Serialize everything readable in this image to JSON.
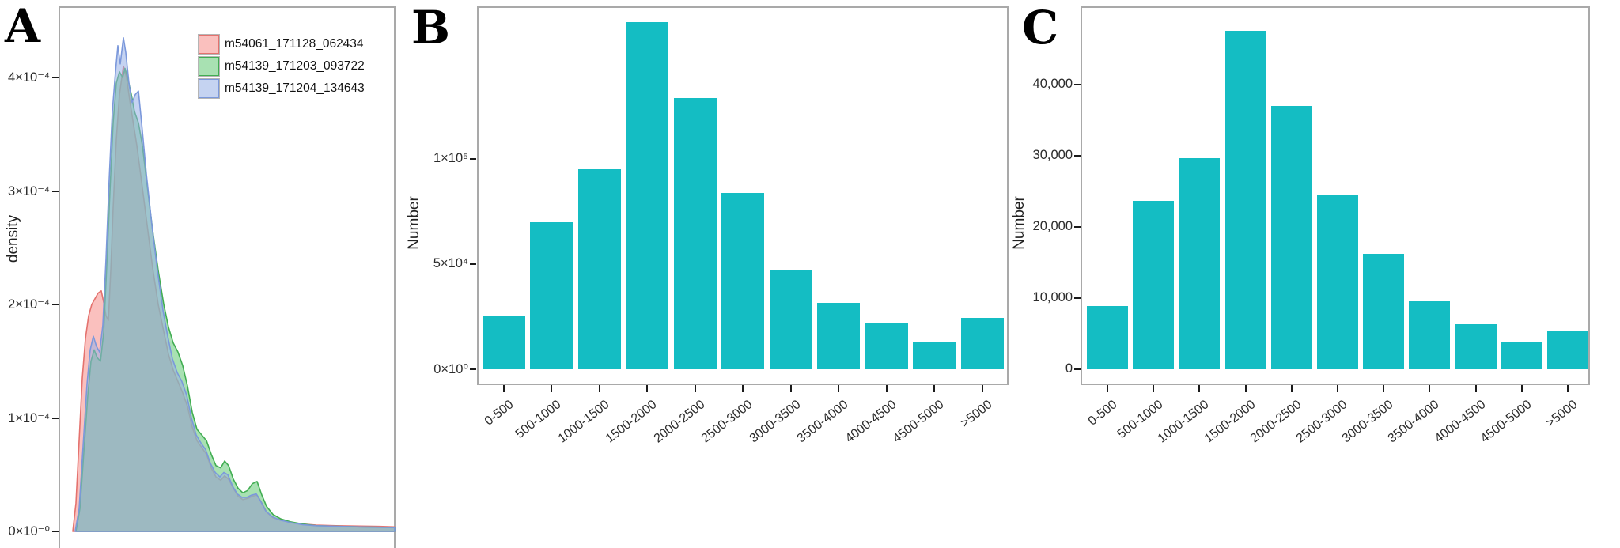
{
  "panels": {
    "A": {
      "label": "A",
      "y_axis_title": "density"
    },
    "B": {
      "label": "B",
      "y_axis_title": "Number"
    },
    "C": {
      "label": "C",
      "y_axis_title": "Number"
    }
  },
  "chart_data": [
    {
      "panel": "A",
      "type": "area",
      "title": "",
      "xlabel": "",
      "ylabel": "density",
      "grid": false,
      "legend_position": "top-left-inside",
      "ylim_e4": [
        0,
        4.63
      ],
      "y_ticks": [
        {
          "label": "0×10⁻⁰",
          "value": 0
        },
        {
          "label": "1×10⁻⁴",
          "value": 1
        },
        {
          "label": "2×10⁻⁴",
          "value": 2
        },
        {
          "label": "3×10⁻⁴",
          "value": 3
        },
        {
          "label": "4×10⁻⁴",
          "value": 4
        }
      ],
      "series": [
        {
          "name": "m54061_171128_062434",
          "line_color": "#e4726e",
          "fill_color": "rgba(246,140,136,0.55)",
          "points": [
            [
              92,
              0
            ],
            [
              96,
              0.25
            ],
            [
              100,
              0.8
            ],
            [
              104,
              1.35
            ],
            [
              108,
              1.7
            ],
            [
              112,
              1.9
            ],
            [
              116,
              2.0
            ],
            [
              120,
              2.05
            ],
            [
              124,
              2.1
            ],
            [
              128,
              2.12
            ],
            [
              131,
              2.02
            ],
            [
              134,
              1.9
            ],
            [
              137,
              1.86
            ],
            [
              140,
              2.3
            ],
            [
              143,
              2.85
            ],
            [
              147,
              3.45
            ],
            [
              151,
              3.85
            ],
            [
              156,
              4.1
            ],
            [
              160,
              4.0
            ],
            [
              164,
              3.8
            ],
            [
              168,
              3.62
            ],
            [
              173,
              3.4
            ],
            [
              179,
              3.08
            ],
            [
              186,
              2.7
            ],
            [
              193,
              2.32
            ],
            [
              200,
              2.0
            ],
            [
              207,
              1.76
            ],
            [
              213,
              1.56
            ],
            [
              219,
              1.42
            ],
            [
              225,
              1.32
            ],
            [
              231,
              1.22
            ],
            [
              237,
              1.1
            ],
            [
              243,
              0.92
            ],
            [
              249,
              0.8
            ],
            [
              255,
              0.74
            ],
            [
              261,
              0.68
            ],
            [
              267,
              0.56
            ],
            [
              273,
              0.48
            ],
            [
              279,
              0.45
            ],
            [
              284,
              0.49
            ],
            [
              289,
              0.46
            ],
            [
              295,
              0.38
            ],
            [
              301,
              0.31
            ],
            [
              307,
              0.28
            ],
            [
              313,
              0.29
            ],
            [
              319,
              0.31
            ],
            [
              325,
              0.32
            ],
            [
              331,
              0.25
            ],
            [
              337,
              0.17
            ],
            [
              345,
              0.12
            ],
            [
              355,
              0.1
            ],
            [
              367,
              0.08
            ],
            [
              383,
              0.065
            ],
            [
              400,
              0.055
            ],
            [
              425,
              0.05
            ],
            [
              455,
              0.047
            ],
            [
              480,
              0.044
            ],
            [
              499,
              0.04
            ]
          ]
        },
        {
          "name": "m54139_171203_093722",
          "line_color": "#41ad52",
          "fill_color": "rgba(97,200,115,0.55)",
          "points": [
            [
              96,
              0
            ],
            [
              101,
              0.2
            ],
            [
              106,
              0.7
            ],
            [
              111,
              1.2
            ],
            [
              115,
              1.5
            ],
            [
              119,
              1.6
            ],
            [
              123,
              1.53
            ],
            [
              127,
              1.5
            ],
            [
              131,
              1.75
            ],
            [
              135,
              2.35
            ],
            [
              139,
              3.0
            ],
            [
              143,
              3.6
            ],
            [
              147,
              3.95
            ],
            [
              151,
              4.05
            ],
            [
              155,
              4.0
            ],
            [
              158,
              4.08
            ],
            [
              162,
              3.98
            ],
            [
              166,
              3.85
            ],
            [
              170,
              3.7
            ],
            [
              175,
              3.6
            ],
            [
              180,
              3.4
            ],
            [
              186,
              3.05
            ],
            [
              193,
              2.65
            ],
            [
              200,
              2.3
            ],
            [
              207,
              2.0
            ],
            [
              213,
              1.8
            ],
            [
              219,
              1.66
            ],
            [
              225,
              1.58
            ],
            [
              231,
              1.46
            ],
            [
              237,
              1.28
            ],
            [
              243,
              1.05
            ],
            [
              249,
              0.9
            ],
            [
              255,
              0.85
            ],
            [
              261,
              0.8
            ],
            [
              267,
              0.68
            ],
            [
              273,
              0.58
            ],
            [
              279,
              0.56
            ],
            [
              284,
              0.62
            ],
            [
              289,
              0.58
            ],
            [
              295,
              0.46
            ],
            [
              301,
              0.38
            ],
            [
              307,
              0.34
            ],
            [
              313,
              0.36
            ],
            [
              319,
              0.42
            ],
            [
              325,
              0.44
            ],
            [
              331,
              0.32
            ],
            [
              337,
              0.22
            ],
            [
              345,
              0.15
            ],
            [
              355,
              0.11
            ],
            [
              367,
              0.085
            ],
            [
              383,
              0.065
            ],
            [
              400,
              0.05
            ],
            [
              425,
              0.045
            ],
            [
              455,
              0.04
            ],
            [
              480,
              0.036
            ],
            [
              499,
              0.034
            ]
          ]
        },
        {
          "name": "m54139_171204_134643",
          "line_color": "#7b98db",
          "fill_color": "rgba(150,175,230,0.55)",
          "points": [
            [
              95,
              0
            ],
            [
              100,
              0.2
            ],
            [
              105,
              0.75
            ],
            [
              110,
              1.3
            ],
            [
              114,
              1.6
            ],
            [
              118,
              1.72
            ],
            [
              122,
              1.63
            ],
            [
              126,
              1.58
            ],
            [
              130,
              1.82
            ],
            [
              134,
              2.4
            ],
            [
              138,
              3.1
            ],
            [
              142,
              3.7
            ],
            [
              146,
              4.05
            ],
            [
              149,
              4.28
            ],
            [
              152,
              4.12
            ],
            [
              156,
              4.35
            ],
            [
              159,
              4.22
            ],
            [
              163,
              3.95
            ],
            [
              167,
              3.78
            ],
            [
              171,
              3.85
            ],
            [
              175,
              3.88
            ],
            [
              179,
              3.6
            ],
            [
              185,
              3.15
            ],
            [
              192,
              2.7
            ],
            [
              199,
              2.3
            ],
            [
              206,
              1.95
            ],
            [
              212,
              1.72
            ],
            [
              218,
              1.52
            ],
            [
              224,
              1.4
            ],
            [
              230,
              1.32
            ],
            [
              236,
              1.2
            ],
            [
              242,
              1.0
            ],
            [
              248,
              0.85
            ],
            [
              254,
              0.78
            ],
            [
              260,
              0.72
            ],
            [
              266,
              0.6
            ],
            [
              272,
              0.52
            ],
            [
              278,
              0.48
            ],
            [
              283,
              0.52
            ],
            [
              288,
              0.5
            ],
            [
              294,
              0.4
            ],
            [
              300,
              0.33
            ],
            [
              306,
              0.3
            ],
            [
              312,
              0.3
            ],
            [
              318,
              0.32
            ],
            [
              324,
              0.33
            ],
            [
              330,
              0.26
            ],
            [
              336,
              0.18
            ],
            [
              344,
              0.13
            ],
            [
              354,
              0.1
            ],
            [
              366,
              0.08
            ],
            [
              382,
              0.06
            ],
            [
              400,
              0.05
            ],
            [
              425,
              0.045
            ],
            [
              455,
              0.04
            ],
            [
              480,
              0.037
            ],
            [
              499,
              0.034
            ]
          ]
        }
      ]
    },
    {
      "panel": "B",
      "type": "bar",
      "title": "",
      "xlabel": "",
      "ylabel": "Number",
      "grid": false,
      "bar_color": "#14bdc3",
      "ylim": [
        0,
        172000
      ],
      "categories": [
        "0-500",
        "500-1000",
        "1000-1500",
        "1500-2000",
        "2000-2500",
        "2500-3000",
        "3000-3500",
        "3500-4000",
        "4000-4500",
        "4500-5000",
        ">5000"
      ],
      "values": [
        25500,
        70000,
        95000,
        165000,
        129000,
        84000,
        47500,
        31500,
        22000,
        13000,
        24500
      ],
      "y_ticks": [
        {
          "label": "0×10⁰",
          "value": 0
        },
        {
          "label": "5×10⁴",
          "value": 50000
        },
        {
          "label": "1×10⁵",
          "value": 100000
        }
      ]
    },
    {
      "panel": "C",
      "type": "bar",
      "title": "",
      "xlabel": "",
      "ylabel": "Number",
      "grid": false,
      "bar_color": "#14bdc3",
      "ylim": [
        0,
        51000
      ],
      "categories": [
        "0-500",
        "500-1000",
        "1000-1500",
        "1500-2000",
        "2000-2500",
        "2500-3000",
        "3000-3500",
        "3500-4000",
        "4000-4500",
        "4500-5000",
        ">5000"
      ],
      "values": [
        8900,
        23600,
        29600,
        47500,
        37000,
        24400,
        16200,
        9600,
        6300,
        3800,
        5300
      ],
      "y_ticks": [
        {
          "label": "0",
          "value": 0
        },
        {
          "label": "10,000",
          "value": 10000
        },
        {
          "label": "20,000",
          "value": 20000
        },
        {
          "label": "30,000",
          "value": 30000
        },
        {
          "label": "40,000",
          "value": 40000
        }
      ]
    }
  ]
}
